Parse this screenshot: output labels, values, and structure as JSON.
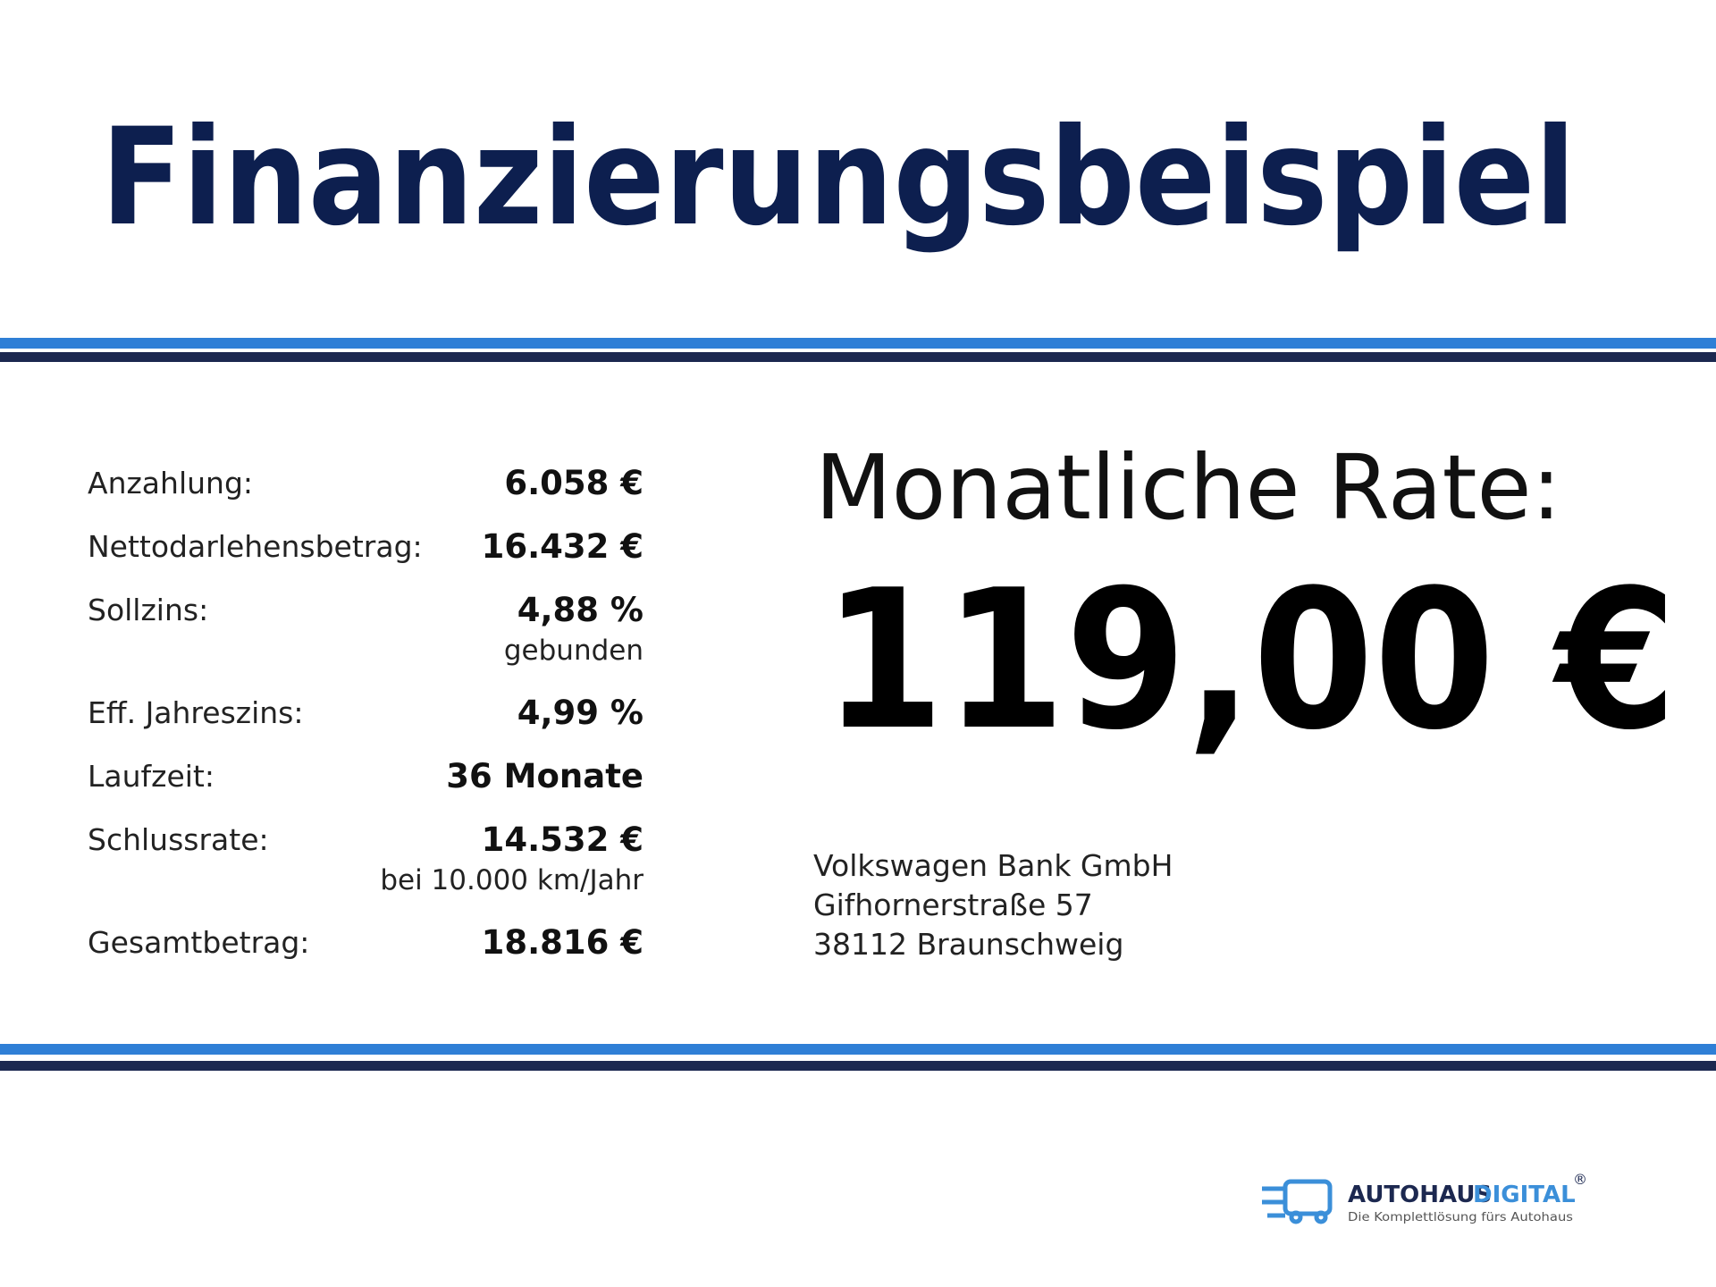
{
  "header": {
    "title": "Finanzierungsbeispiel"
  },
  "details": {
    "rows": [
      {
        "label": "Anzahlung:",
        "value": "6.058 €"
      },
      {
        "label": "Nettodarlehensbetrag:",
        "value": "16.432 €"
      },
      {
        "label": "Sollzins:",
        "value": "4,88 %",
        "note": "gebunden"
      },
      {
        "label": "Eff. Jahreszins:",
        "value": "4,99 %"
      },
      {
        "label": "Laufzeit:",
        "value": "36 Monate"
      },
      {
        "label": "Schlussrate:",
        "value": "14.532 €",
        "note": "bei 10.000 km/Jahr"
      },
      {
        "label": "Gesamtbetrag:",
        "value": "18.816 €"
      }
    ]
  },
  "rate": {
    "label": "Monatliche Rate:",
    "value": "119,00 €"
  },
  "lender": {
    "lines": [
      "Volkswagen Bank GmbH",
      "Gifhornerstraße 57",
      "38112 Braunschweig"
    ]
  },
  "logo": {
    "name": "AUTOHAUS",
    "name_accent": "DIGITAL",
    "registered": "®",
    "tagline": "Die Komplettlösung fürs Autohaus"
  }
}
